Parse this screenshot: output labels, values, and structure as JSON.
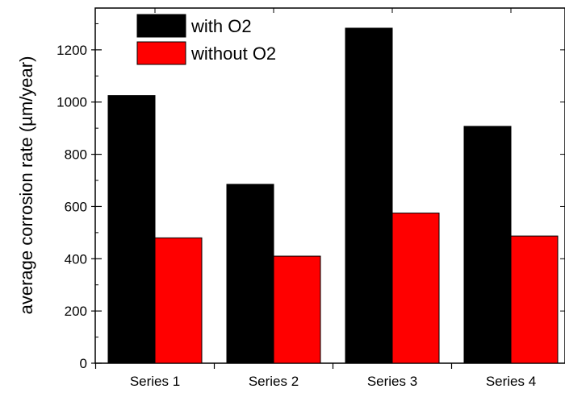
{
  "chart_data": {
    "type": "bar",
    "categories": [
      "Series 1",
      "Series 2",
      "Series 3",
      "Series 4"
    ],
    "series": [
      {
        "name": "with O2",
        "values": [
          1025,
          685,
          1283,
          907
        ],
        "color": "#000000"
      },
      {
        "name": "without O2",
        "values": [
          480,
          410,
          575,
          487
        ],
        "color": "#ff0000"
      }
    ],
    "xlabel": "",
    "ylabel": "average corrosion rate (µm/year)",
    "ylim": [
      0,
      1360
    ],
    "yticks": [
      0,
      200,
      400,
      600,
      800,
      1000,
      1200
    ],
    "legend_position": "top-left",
    "grid": false
  }
}
